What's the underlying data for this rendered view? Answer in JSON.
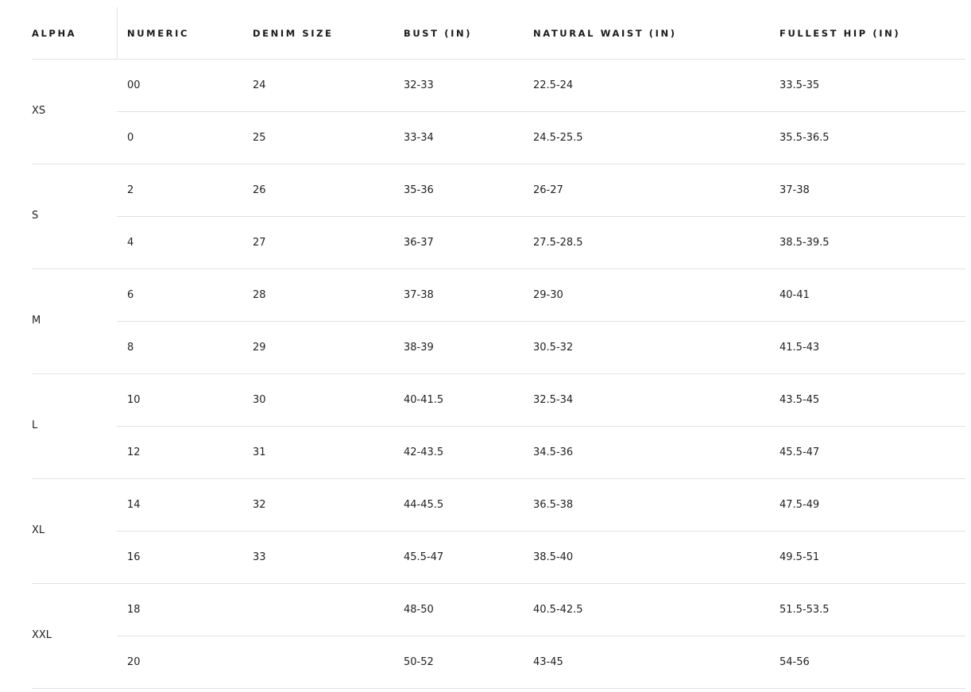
{
  "headers": [
    "ALPHA",
    "NUMERIC",
    "DENIM SIZE",
    "BUST (IN)",
    "NATURAL WAIST (IN)",
    "FULLEST HIP (IN)"
  ],
  "groups": [
    {
      "alpha": "XS",
      "rows": [
        [
          "00",
          "24",
          "32-33",
          "22.5-24",
          "33.5-35"
        ],
        [
          "0",
          "25",
          "33-34",
          "24.5-25.5",
          "35.5-36.5"
        ]
      ]
    },
    {
      "alpha": "S",
      "rows": [
        [
          "2",
          "26",
          "35-36",
          "26-27",
          "37-38"
        ],
        [
          "4",
          "27",
          "36-37",
          "27.5-28.5",
          "38.5-39.5"
        ]
      ]
    },
    {
      "alpha": "M",
      "rows": [
        [
          "6",
          "28",
          "37-38",
          "29-30",
          "40-41"
        ],
        [
          "8",
          "29",
          "38-39",
          "30.5-32",
          "41.5-43"
        ]
      ]
    },
    {
      "alpha": "L",
      "rows": [
        [
          "10",
          "30",
          "40-41.5",
          "32.5-34",
          "43.5-45"
        ],
        [
          "12",
          "31",
          "42-43.5",
          "34.5-36",
          "45.5-47"
        ]
      ]
    },
    {
      "alpha": "XL",
      "rows": [
        [
          "14",
          "32",
          "44-45.5",
          "36.5-38",
          "47.5-49"
        ],
        [
          "16",
          "33",
          "45.5-47",
          "38.5-40",
          "49.5-51"
        ]
      ]
    },
    {
      "alpha": "XXL",
      "rows": [
        [
          "18",
          "",
          "48-50",
          "40.5-42.5",
          "51.5-53.5"
        ],
        [
          "20",
          "",
          "50-52",
          "43-45",
          "54-56"
        ]
      ]
    }
  ]
}
